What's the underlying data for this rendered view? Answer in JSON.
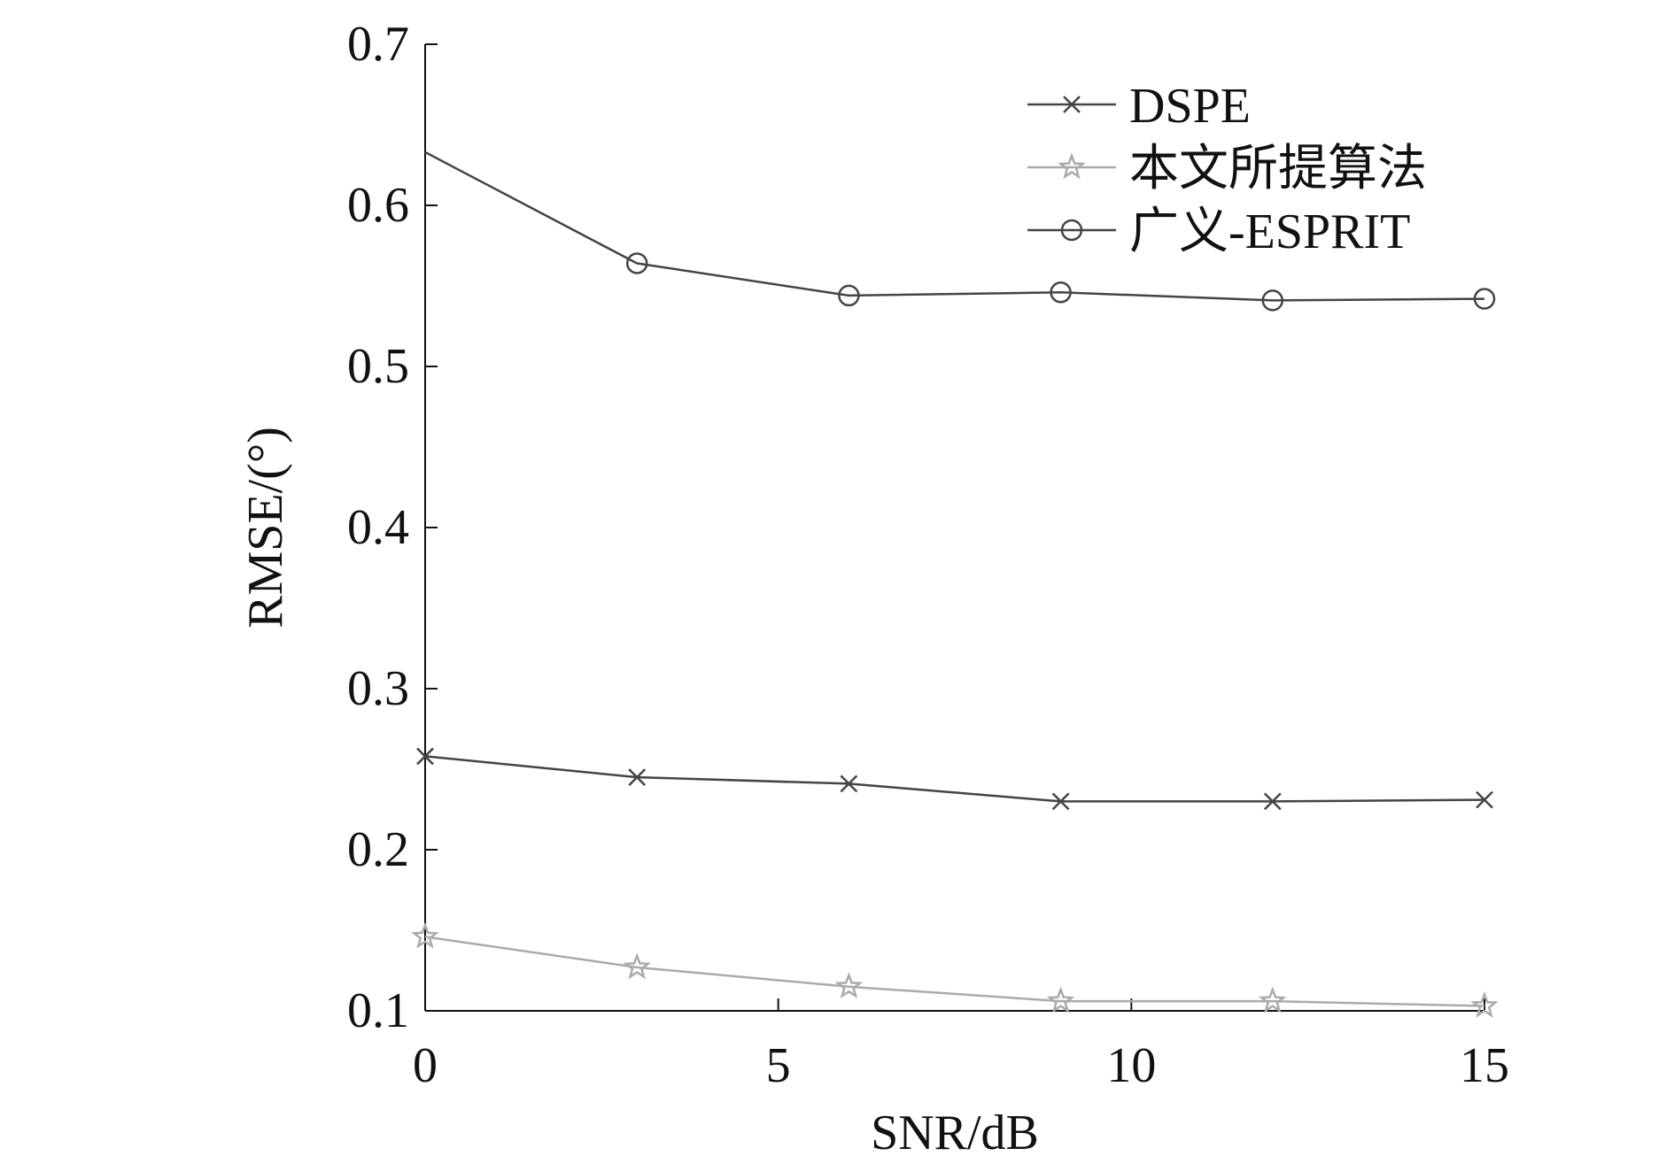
{
  "chart_data": {
    "type": "line",
    "title": "",
    "xlabel": "SNR/dB",
    "ylabel": "RMSE/(°)",
    "xlim": [
      0,
      15
    ],
    "ylim": [
      0.1,
      0.7
    ],
    "xticks": [
      0,
      5,
      10,
      15
    ],
    "xtick_labels": [
      "0",
      "5",
      "10",
      "15"
    ],
    "yticks": [
      0.1,
      0.2,
      0.3,
      0.4,
      0.5,
      0.6,
      0.7
    ],
    "ytick_labels": [
      "0.1",
      "0.2",
      "0.3",
      "0.4",
      "0.5",
      "0.6",
      "0.7"
    ],
    "grid": false,
    "legend_position": "top-right",
    "series": [
      {
        "name": "DSPE",
        "color": "#444444",
        "marker": "x",
        "x": [
          0,
          3,
          6,
          9,
          12,
          15
        ],
        "y": [
          0.258,
          0.245,
          0.241,
          0.23,
          0.23,
          0.231
        ]
      },
      {
        "name": "本文所提算法",
        "color": "#aaaaaa",
        "marker": "star",
        "x": [
          0,
          3,
          6,
          9,
          12,
          15
        ],
        "y": [
          0.146,
          0.127,
          0.115,
          0.106,
          0.106,
          0.103
        ]
      },
      {
        "name": "广义-ESPRIT",
        "color": "#444444",
        "marker": "circle",
        "x": [
          0,
          3,
          6,
          9,
          12,
          15
        ],
        "y": [
          0.633,
          0.564,
          0.544,
          0.546,
          0.541,
          0.542
        ]
      }
    ]
  }
}
